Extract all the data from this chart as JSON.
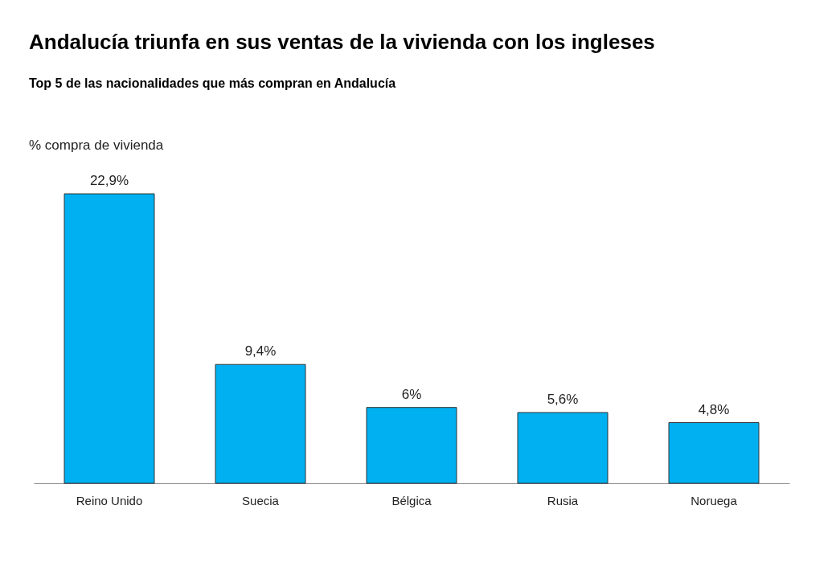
{
  "chart_data": {
    "type": "bar",
    "title": "Andalucía triunfa en sus ventas de la vivienda con los ingleses",
    "subtitle": "Top 5 de las nacionalidades  que más compran en Andalucía",
    "ylabel": "% compra de vivienda",
    "categories": [
      "Reino Unido",
      "Suecia",
      "Bélgica",
      "Rusia",
      "Noruega"
    ],
    "values": [
      22.9,
      9.4,
      6,
      5.6,
      4.8
    ],
    "value_labels": [
      "22,9%",
      "9,4%",
      "6%",
      "5,6%",
      "4,8%"
    ],
    "color": "#00b0f0"
  }
}
